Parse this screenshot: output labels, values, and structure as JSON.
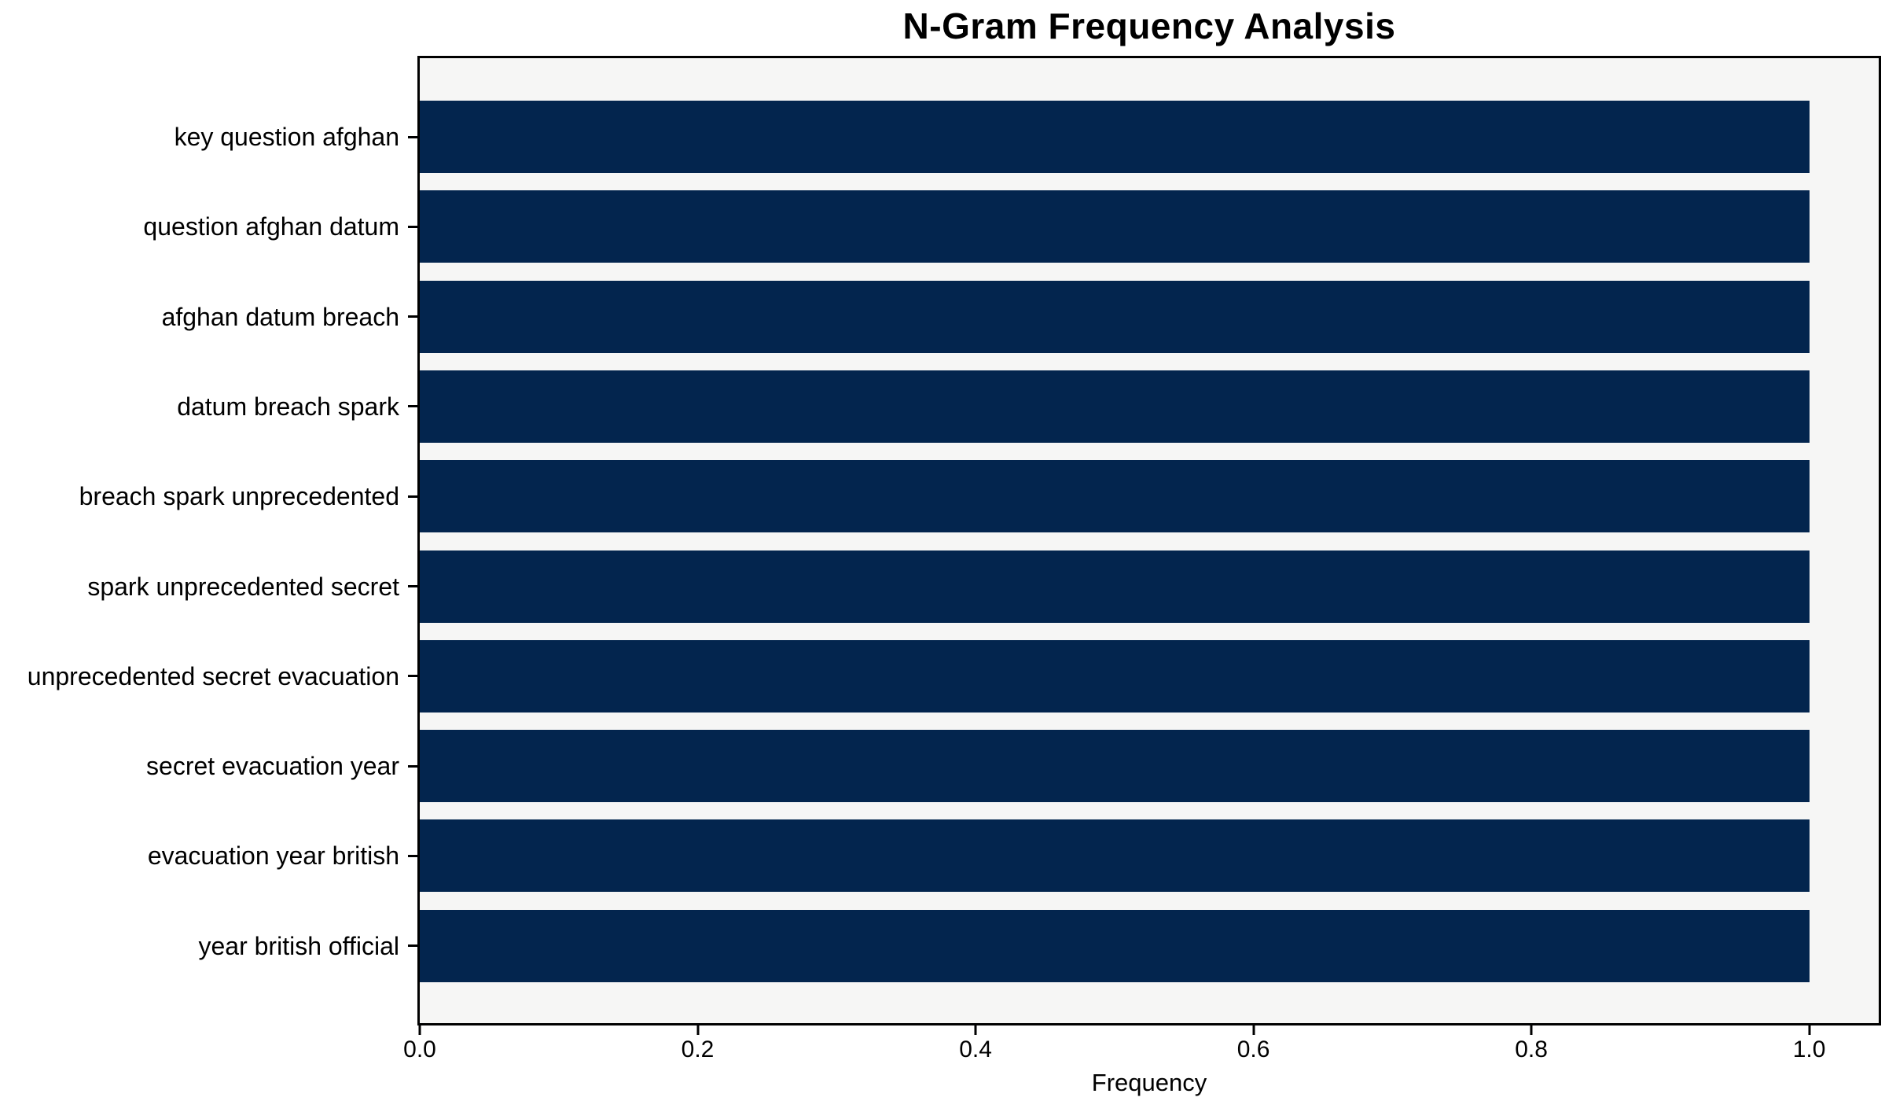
{
  "chart_data": {
    "type": "bar",
    "orientation": "horizontal",
    "title": "N-Gram Frequency Analysis",
    "xlabel": "Frequency",
    "ylabel": "",
    "categories": [
      "key question afghan",
      "question afghan datum",
      "afghan datum breach",
      "datum breach spark",
      "breach spark unprecedented",
      "spark unprecedented secret",
      "unprecedented secret evacuation",
      "secret evacuation year",
      "evacuation year british",
      "year british official"
    ],
    "values": [
      1.0,
      1.0,
      1.0,
      1.0,
      1.0,
      1.0,
      1.0,
      1.0,
      1.0,
      1.0
    ],
    "xlim": [
      0,
      1.05
    ],
    "xticks": [
      "0.0",
      "0.2",
      "0.4",
      "0.6",
      "0.8",
      "1.0"
    ],
    "grid": false,
    "legend": null,
    "bar_color": "#03254e",
    "plot_background": "#f6f6f5",
    "figure_background": "#ffffff",
    "spine_color": "#000000",
    "text_color": "#000000"
  }
}
